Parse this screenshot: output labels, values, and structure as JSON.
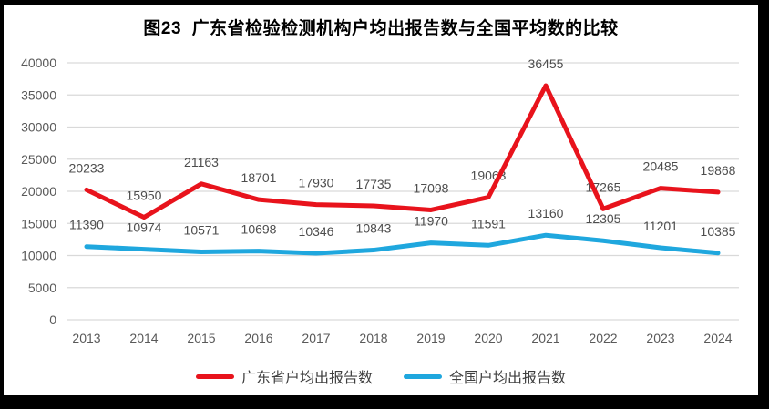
{
  "title": "图23  广东省检验检测机构户均出报告数与全国平均数的比较",
  "chart_data": {
    "type": "line",
    "x": [
      "2013",
      "2014",
      "2015",
      "2016",
      "2017",
      "2018",
      "2019",
      "2020",
      "2021",
      "2022",
      "2023",
      "2024"
    ],
    "series": [
      {
        "name": "广东省户均出报告数",
        "color": "#e8131c",
        "values": [
          20233,
          15950,
          21163,
          18701,
          17930,
          17735,
          17098,
          19063,
          36455,
          17265,
          20485,
          19868
        ]
      },
      {
        "name": "全国户均出报告数",
        "color": "#1fa7de",
        "values": [
          11390,
          10974,
          10571,
          10698,
          10346,
          10843,
          11970,
          11591,
          13160,
          12305,
          11201,
          10385
        ]
      }
    ],
    "ylim": [
      0,
      40000
    ],
    "ytick_step": 5000,
    "yticks": [
      0,
      5000,
      10000,
      15000,
      20000,
      25000,
      30000,
      35000,
      40000
    ],
    "grid": "horizontal-only",
    "legend_position": "bottom",
    "data_labels": "all-points",
    "colors": {
      "grid": "#d9d9d9",
      "axis_labels": "#595959",
      "data_labels": "#4d4d4d",
      "title": "#000000",
      "background": "#ffffff",
      "frame_border": "#000000"
    }
  }
}
